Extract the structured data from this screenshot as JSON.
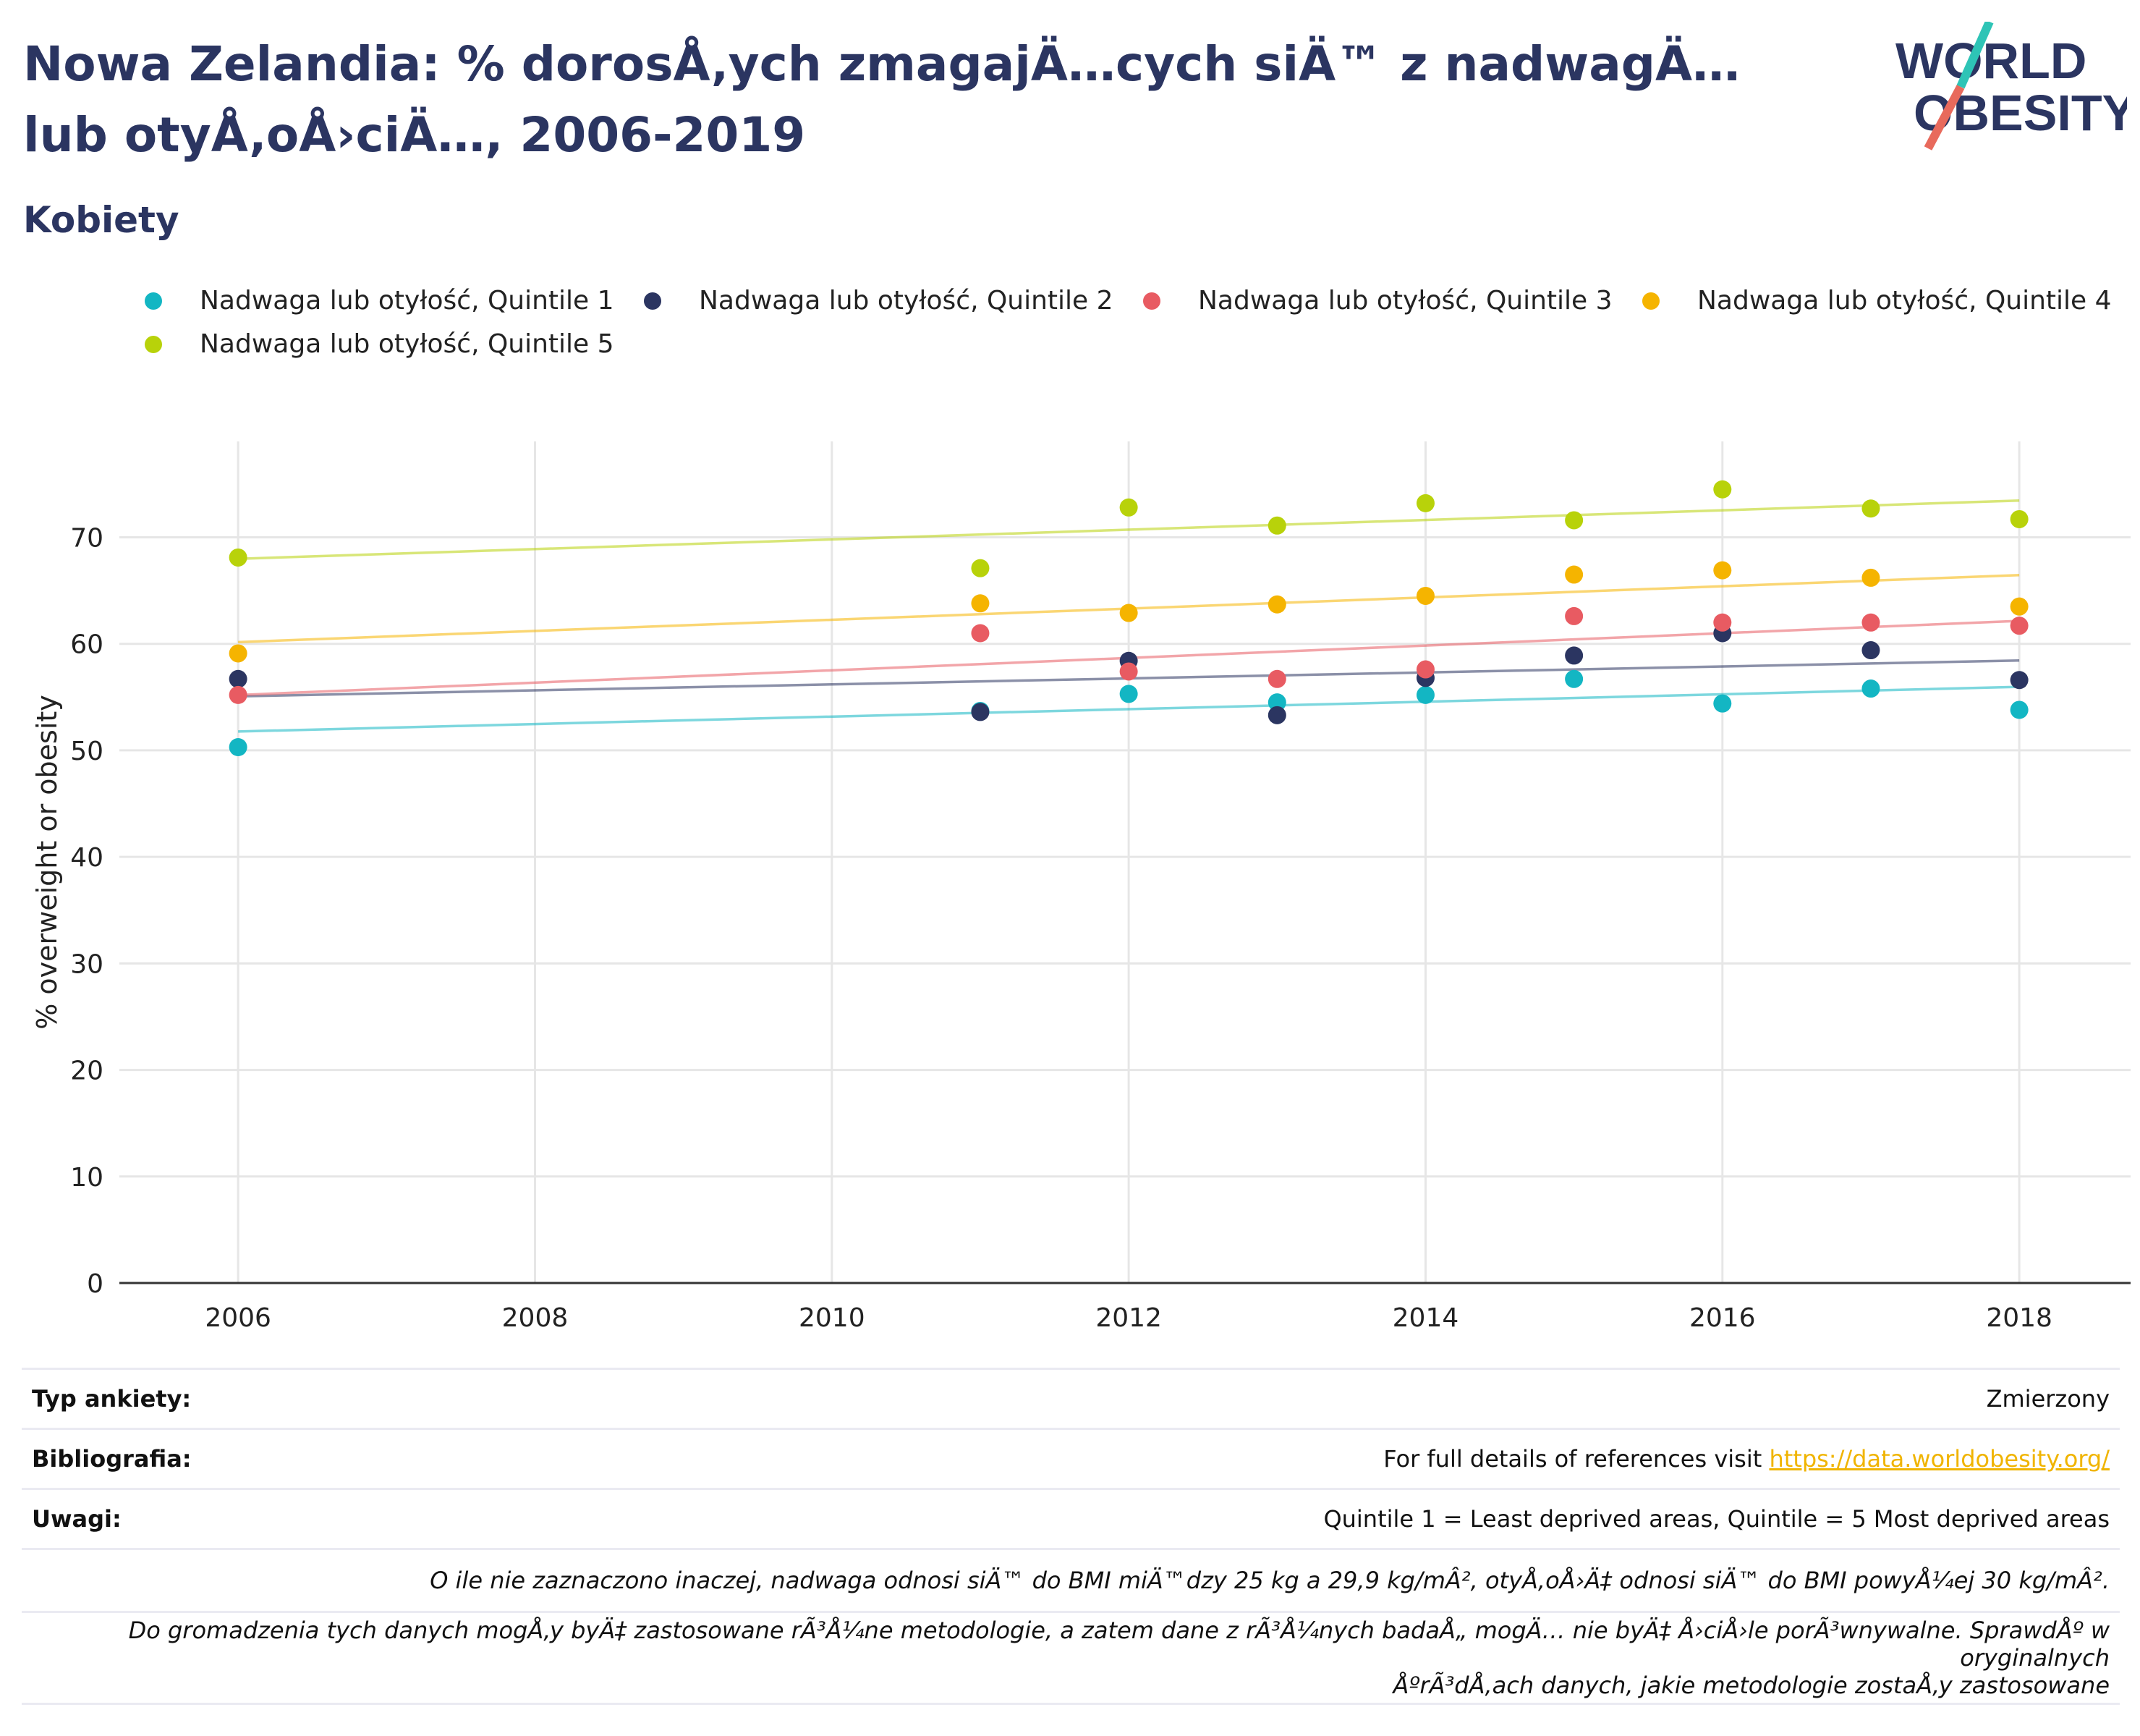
{
  "header": {
    "title": "Nowa Zelandia: % dorosÅ‚ych zmagajÄ…cych siÄ™ z nadwagÄ… lub otyÅ‚oÅ›ciÄ…, 2006-2019",
    "subtitle": "Kobiety",
    "logo_line1": "WORLD",
    "logo_line2": "OBESITY"
  },
  "colors": {
    "navy": "#2b3561",
    "q1": "#13b6c3",
    "q2": "#2b3561",
    "q3": "#e85b62",
    "q4": "#f5b400",
    "q5": "#b8d20a",
    "link": "#f0b400"
  },
  "chart_data": {
    "type": "scatter",
    "xlabel": "",
    "ylabel": "% overweight or obesity",
    "xlim": [
      2005.2,
      2018.75
    ],
    "ylim": [
      0,
      79
    ],
    "x_ticks": [
      "2006",
      "2008",
      "2010",
      "2012",
      "2014",
      "2016",
      "2018"
    ],
    "y_ticks": [
      "0",
      "10",
      "20",
      "30",
      "40",
      "50",
      "60",
      "70"
    ],
    "grid": true,
    "legend_position": "top",
    "trendlines": true,
    "series": [
      {
        "name": "Nadwaga lub otyłość, Quintile 1",
        "color": "#13b6c3",
        "x": [
          2006,
          2011,
          2012,
          2013,
          2014,
          2015,
          2016,
          2017,
          2018
        ],
        "y": [
          50.3,
          53.7,
          55.3,
          54.5,
          55.2,
          56.7,
          54.4,
          55.8,
          53.8
        ]
      },
      {
        "name": "Nadwaga lub otyłość, Quintile 2",
        "color": "#2b3561",
        "x": [
          2006,
          2011,
          2012,
          2013,
          2014,
          2015,
          2016,
          2017,
          2018
        ],
        "y": [
          56.7,
          53.6,
          58.4,
          53.3,
          56.8,
          58.9,
          61.0,
          59.4,
          56.6
        ]
      },
      {
        "name": "Nadwaga lub otyłość, Quintile 3",
        "color": "#e85b62",
        "x": [
          2006,
          2011,
          2012,
          2013,
          2014,
          2015,
          2016,
          2017,
          2018
        ],
        "y": [
          55.2,
          61.0,
          57.4,
          56.7,
          57.6,
          62.6,
          62.0,
          62.0,
          61.7
        ]
      },
      {
        "name": "Nadwaga lub otyłość, Quintile 4",
        "color": "#f5b400",
        "x": [
          2006,
          2011,
          2012,
          2013,
          2014,
          2015,
          2016,
          2017,
          2018
        ],
        "y": [
          59.1,
          63.8,
          62.9,
          63.7,
          64.5,
          66.5,
          66.9,
          66.2,
          63.5
        ]
      },
      {
        "name": "Nadwaga lub otyłość, Quintile 5",
        "color": "#b8d20a",
        "x": [
          2006,
          2011,
          2012,
          2013,
          2014,
          2015,
          2016,
          2017,
          2018
        ],
        "y": [
          68.1,
          67.1,
          72.8,
          71.1,
          73.2,
          71.6,
          74.5,
          72.7,
          71.7
        ]
      }
    ]
  },
  "footer": {
    "survey_type_label": "Typ ankiety:",
    "survey_type_value": "Zmierzony",
    "references_label": "Bibliografia:",
    "references_text": "For full details of references visit ",
    "references_link": "https://data.worldobesity.org/",
    "notes_label": "Uwagi:",
    "notes_value": "Quintile 1 = Least deprived areas, Quintile = 5 Most deprived areas",
    "note_bmi": "O ile nie zaznaczono inaczej, nadwaga odnosi siÄ™ do BMI miÄ™dzy 25 kg a 29,9 kg/mÂ², otyÅ‚oÅ›Ä‡ odnosi siÄ™ do BMI powyÅ¼ej 30 kg/mÂ².",
    "note_methods_1": "Do gromadzenia tych danych mogÅ‚y byÄ‡ zastosowane rÃ³Å¼ne metodologie, a zatem dane z rÃ³Å¼nych badaÅ„ mogÄ… nie byÄ‡ Å›ciÅ›le porÃ³wnywalne. SprawdÅº w oryginalnych",
    "note_methods_2": "ÅºrÃ³dÅ‚ach danych, jakie metodologie zostaÅ‚y zastosowane"
  }
}
